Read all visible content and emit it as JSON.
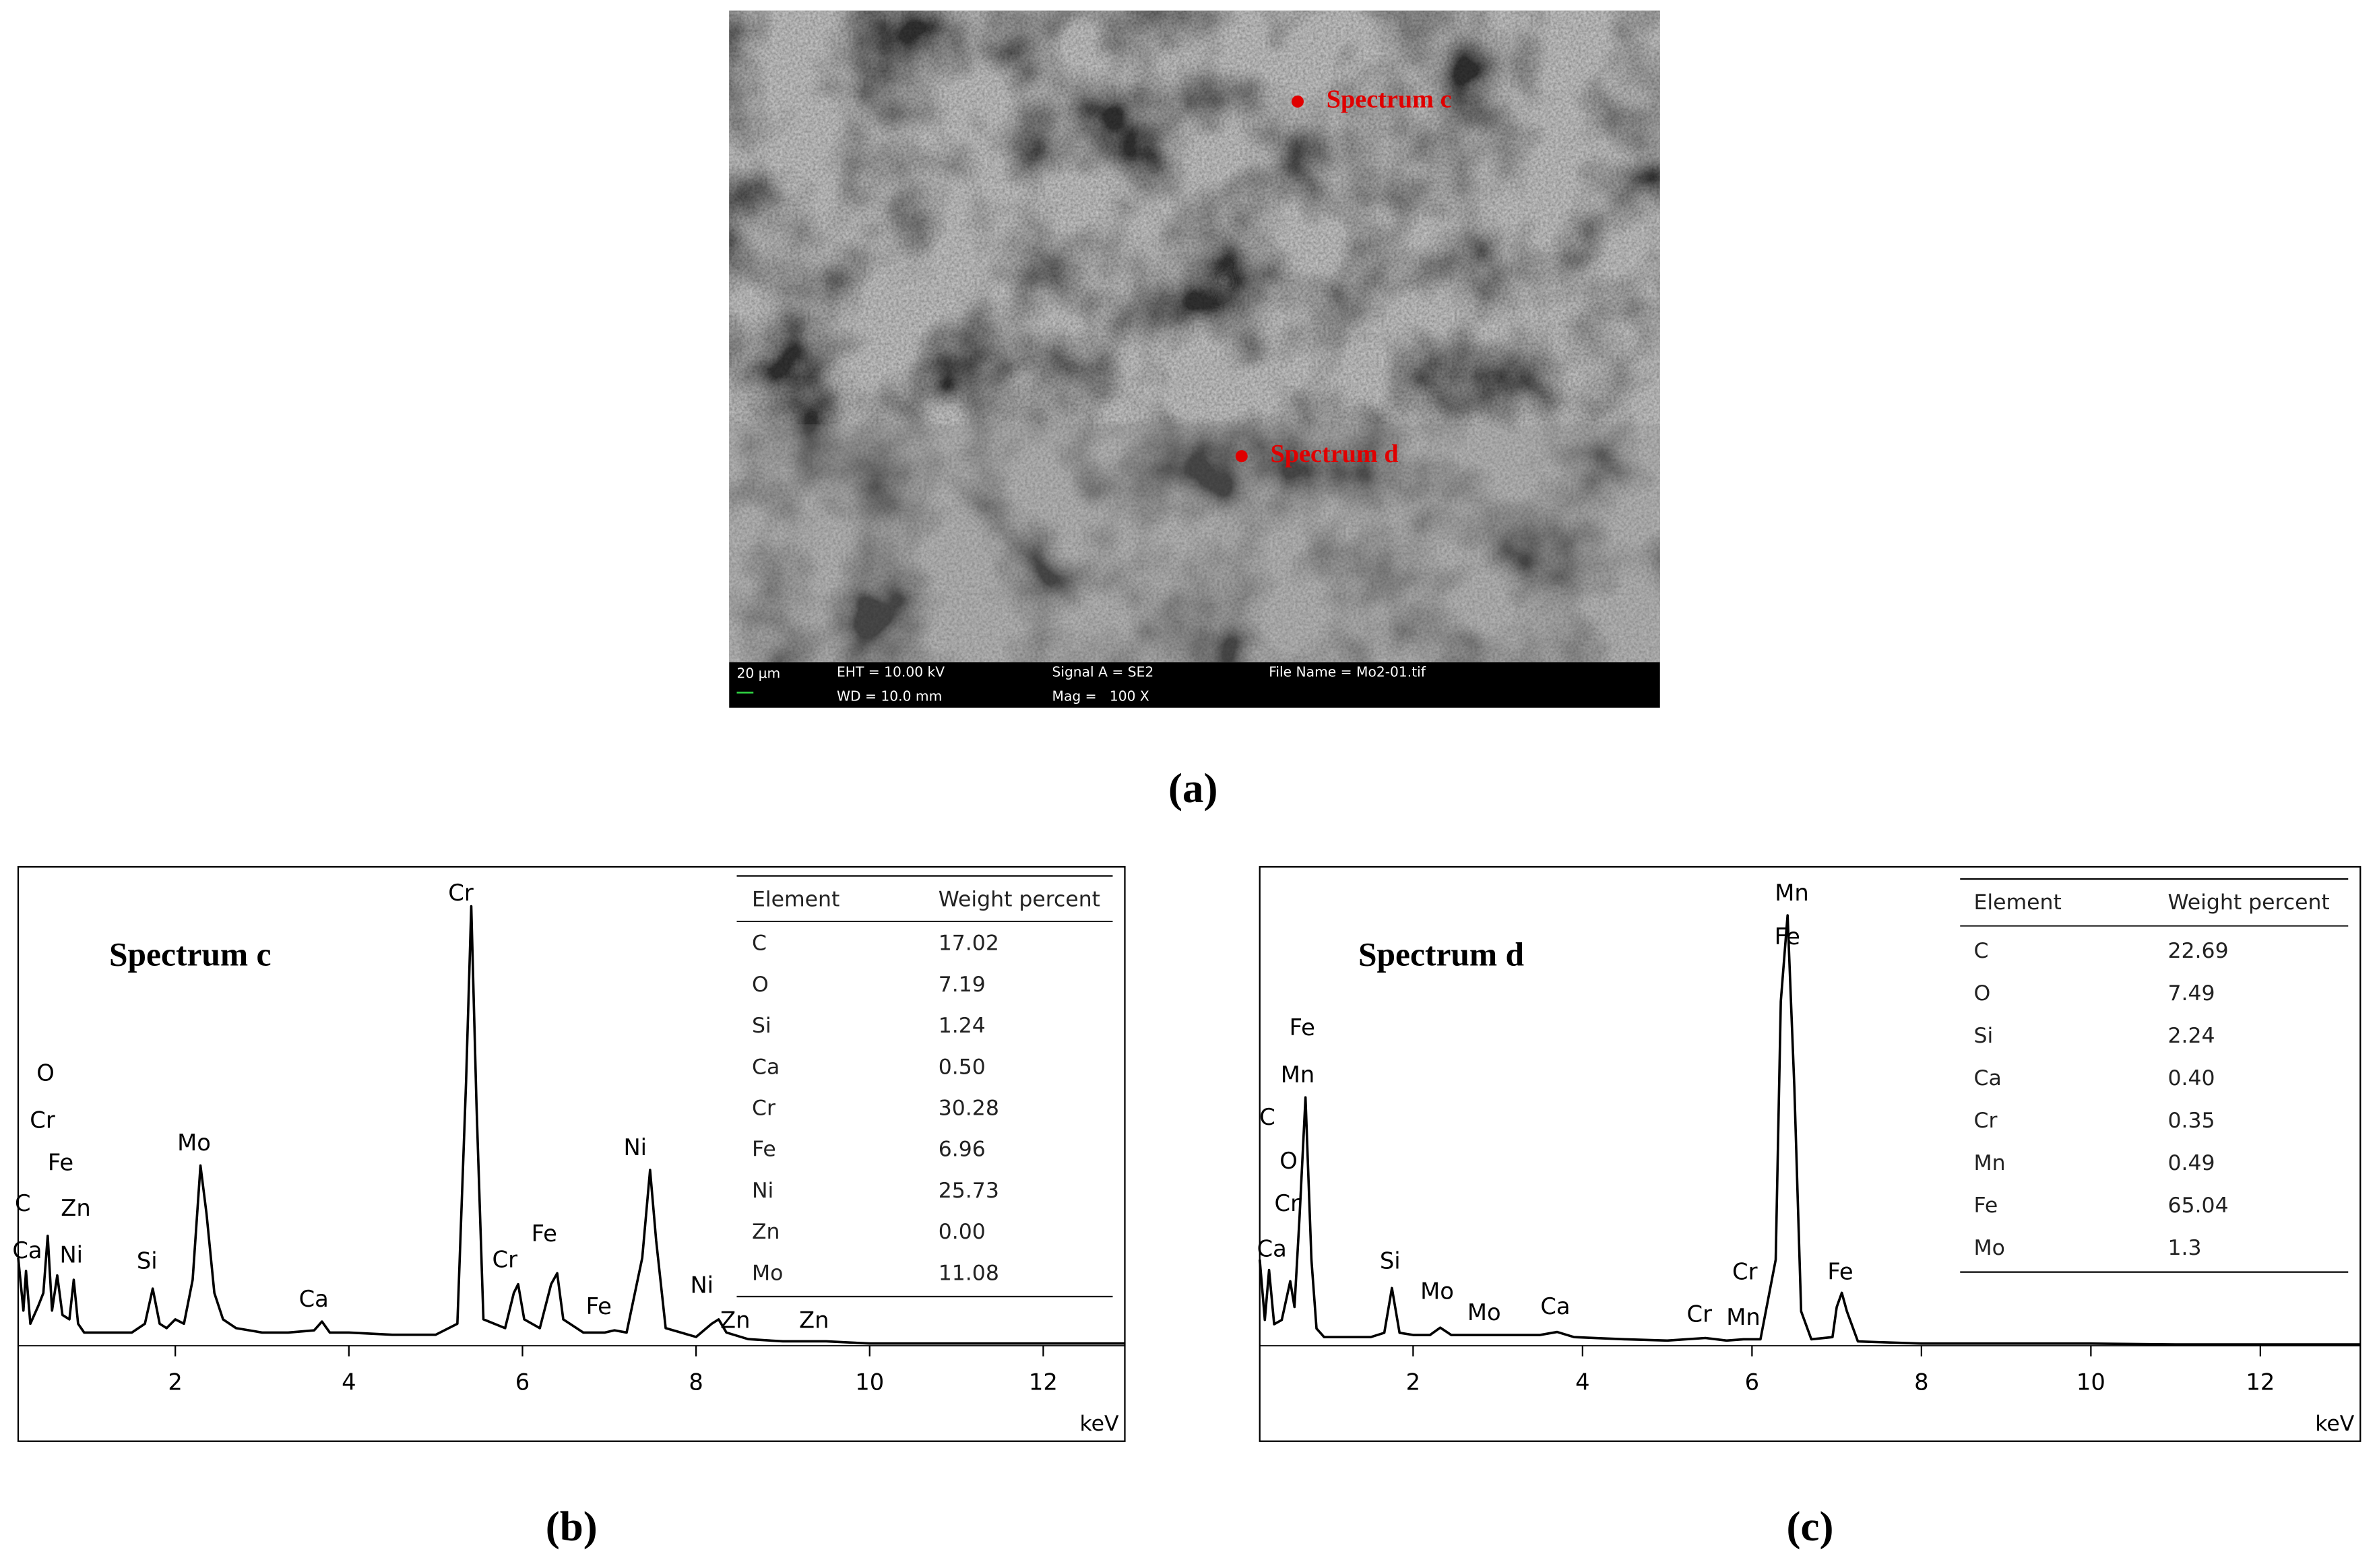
{
  "figure": {
    "panel_a": "(a)",
    "panel_b": "(b)",
    "panel_c": "(c)",
    "sem": {
      "markers": [
        "Spectrum c",
        "Spectrum d"
      ],
      "scale_bar": "20 µm",
      "eht": "EHT = 10.00 kV",
      "wd": "WD = 10.0 mm",
      "signal": "Signal A = SE2",
      "mag": "Mag =   100 X",
      "file": "File Name = Mo2-01.tif"
    }
  },
  "chart_data": [
    {
      "type": "line",
      "title": "Spectrum c",
      "color": "#000000",
      "xlabel": "keV",
      "xlim": [
        0.19,
        12.94
      ],
      "xticks": [
        2,
        4,
        6,
        8,
        10,
        12
      ],
      "x": [
        0.19,
        0.25,
        0.28,
        0.33,
        0.42,
        0.48,
        0.53,
        0.58,
        0.64,
        0.7,
        0.78,
        0.83,
        0.88,
        0.95,
        1.1,
        1.3,
        1.5,
        1.65,
        1.74,
        1.82,
        1.9,
        2.0,
        2.1,
        2.2,
        2.29,
        2.36,
        2.45,
        2.55,
        2.7,
        3.0,
        3.3,
        3.6,
        3.69,
        3.78,
        4.0,
        4.5,
        5.0,
        5.25,
        5.35,
        5.41,
        5.47,
        5.55,
        5.8,
        5.9,
        5.95,
        6.02,
        6.2,
        6.33,
        6.4,
        6.47,
        6.7,
        6.95,
        7.06,
        7.2,
        7.38,
        7.47,
        7.54,
        7.65,
        8.0,
        8.18,
        8.26,
        8.35,
        8.6,
        9.0,
        9.5,
        10,
        11,
        12,
        12.94
      ],
      "values": [
        20,
        8,
        17,
        5,
        9,
        12,
        25,
        8,
        16,
        7,
        6,
        15,
        5,
        3,
        3,
        3,
        3,
        5,
        13,
        5,
        4,
        6,
        5,
        15,
        41,
        30,
        12,
        6,
        4,
        3,
        3,
        3.5,
        5.5,
        3,
        3,
        2.5,
        2.5,
        5,
        60,
        100,
        55,
        6,
        4,
        12,
        14,
        6,
        4,
        14,
        16.5,
        6,
        3,
        3,
        3.5,
        3,
        20,
        40,
        24,
        4,
        2,
        5,
        6,
        3,
        1.5,
        1,
        1,
        0.5,
        0.5,
        0.5,
        0.5
      ],
      "annotations": [
        "O",
        "Cr",
        "Fe",
        "C",
        "Zn",
        "Ca",
        "Ni",
        "Si",
        "Mo",
        "Ca",
        "Cr",
        "Cr",
        "Fe",
        "Fe",
        "Ni",
        "Ni",
        "Zn",
        "Zn"
      ],
      "table": {
        "header": [
          "Element",
          "Weight percent"
        ],
        "rows": [
          [
            "C",
            "17.02"
          ],
          [
            "O",
            "7.19"
          ],
          [
            "Si",
            "1.24"
          ],
          [
            "Ca",
            "0.50"
          ],
          [
            "Cr",
            "30.28"
          ],
          [
            "Fe",
            "6.96"
          ],
          [
            "Ni",
            "25.73"
          ],
          [
            "Zn",
            "0.00"
          ],
          [
            "Mo",
            "11.08"
          ]
        ]
      }
    },
    {
      "type": "line",
      "title": "Spectrum d",
      "color": "#000000",
      "xlabel": "keV",
      "xlim": [
        0.19,
        13.18
      ],
      "xticks": [
        2,
        4,
        6,
        8,
        10,
        12
      ],
      "x": [
        0.19,
        0.25,
        0.3,
        0.36,
        0.45,
        0.55,
        0.6,
        0.66,
        0.73,
        0.8,
        0.86,
        0.95,
        1.2,
        1.5,
        1.66,
        1.75,
        1.84,
        2.0,
        2.2,
        2.32,
        2.45,
        2.8,
        3.2,
        3.5,
        3.7,
        3.9,
        4.5,
        5.0,
        5.45,
        5.7,
        5.9,
        6.1,
        6.28,
        6.34,
        6.42,
        6.5,
        6.58,
        6.7,
        6.95,
        7.0,
        7.06,
        7.12,
        7.25,
        8,
        9,
        10,
        11,
        12,
        13.18
      ],
      "values": [
        20,
        6,
        17.6,
        5,
        6,
        15,
        9,
        30,
        57.7,
        20,
        4,
        2,
        2,
        2,
        3,
        13.4,
        3,
        2.5,
        2.5,
        4.2,
        2.5,
        2.5,
        2.5,
        2.5,
        3.2,
        2,
        1.5,
        1.2,
        1.8,
        1.2,
        1.5,
        1.5,
        20,
        80,
        100,
        60,
        8,
        1.5,
        2,
        9,
        12.3,
        8,
        1,
        0.5,
        0.5,
        0.5,
        0.3,
        0.3,
        0.3
      ],
      "annotations": [
        "Mn",
        "Fe",
        "Fe",
        "Mn",
        "C",
        "O",
        "Cr",
        "Ca",
        "Si",
        "Mo",
        "Mo",
        "Ca",
        "Cr",
        "Cr",
        "Mn",
        "Fe"
      ],
      "table": {
        "header": [
          "Element",
          "Weight percent"
        ],
        "rows": [
          [
            "C",
            "22.69"
          ],
          [
            "O",
            "7.49"
          ],
          [
            "Si",
            "2.24"
          ],
          [
            "Ca",
            "0.40"
          ],
          [
            "Cr",
            "0.35"
          ],
          [
            "Mn",
            "0.49"
          ],
          [
            "Fe",
            "65.04"
          ],
          [
            "Mo",
            "1.3"
          ]
        ]
      }
    }
  ]
}
